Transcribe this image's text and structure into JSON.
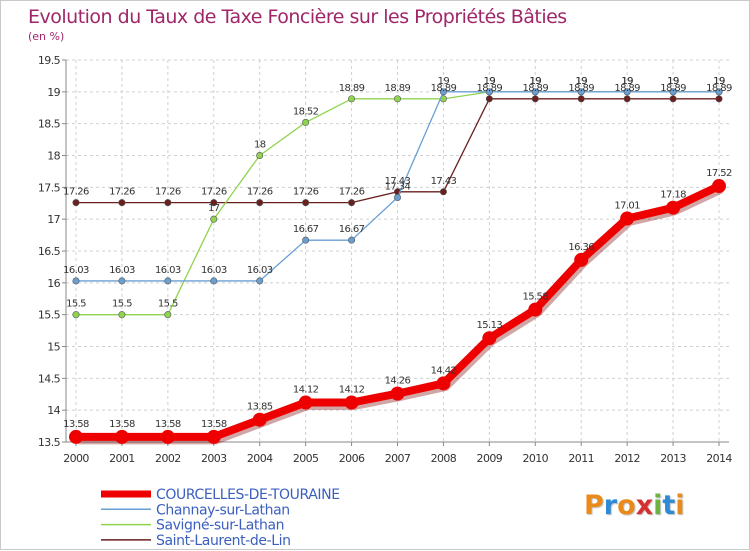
{
  "title": "Evolution du Taux de Taxe Foncière sur les Propriétés Bâties",
  "unit": "(en %)",
  "logo": {
    "text": "Proxiti",
    "colors": [
      "#e98a1a",
      "#2f8ad6",
      "#e98a1a",
      "#d62f2f",
      "#6db33f",
      "#2f8ad6",
      "#e98a1a"
    ]
  },
  "chart_data": {
    "type": "line",
    "title": "Evolution du Taux de Taxe Foncière sur les Propriétés Bâties",
    "ylabel": "(en %)",
    "xlabel": "",
    "ylim": [
      13.5,
      19.5
    ],
    "yticks": [
      "13.5",
      "14",
      "14.5",
      "15",
      "15.5",
      "16",
      "16.5",
      "17",
      "17.5",
      "18",
      "18.5",
      "19",
      "19.5"
    ],
    "x": [
      "2000",
      "2001",
      "2002",
      "2003",
      "2004",
      "2005",
      "2006",
      "2007",
      "2008",
      "2009",
      "2010",
      "2011",
      "2012",
      "2013",
      "2014"
    ],
    "grid": true,
    "legend_position": "bottom-left",
    "series": [
      {
        "name": "Saint-Laurent-de-Lin",
        "color": "#6b1f1f",
        "values": [
          17.26,
          17.26,
          17.26,
          17.26,
          17.26,
          17.26,
          17.26,
          17.43,
          17.43,
          18.89,
          18.89,
          18.89,
          18.89,
          18.89,
          18.89
        ],
        "labels": [
          "17.26",
          "17.26",
          "17.26",
          "17.26",
          "17.26",
          "17.26",
          "17.26",
          "17.43",
          "17.43",
          "18.89",
          "18.89",
          "18.89",
          "18.89",
          "18.89",
          "18.89"
        ]
      },
      {
        "name": "Savigné-sur-Lathan",
        "color": "#8fd44f",
        "values": [
          15.5,
          15.5,
          15.5,
          17,
          18,
          18.52,
          18.89,
          18.89,
          18.89,
          19,
          19,
          19,
          19,
          19,
          19
        ],
        "labels": [
          "15.5",
          "15.5",
          "15.5",
          "17",
          "18",
          "18.52",
          "18.89",
          "18.89",
          "18.89",
          "19",
          "19",
          "19",
          "19",
          "19",
          "19"
        ]
      },
      {
        "name": "Channay-sur-Lathan",
        "color": "#6a9fd4",
        "values": [
          16.03,
          16.03,
          16.03,
          16.03,
          16.03,
          16.67,
          16.67,
          17.34,
          19,
          19,
          19,
          19,
          19,
          19,
          19
        ],
        "labels": [
          "16.03",
          "16.03",
          "16.03",
          "16.03",
          "16.03",
          "16.67",
          "16.67",
          "17.34",
          "19",
          "19",
          "19",
          "19",
          "19",
          "19",
          "19"
        ]
      },
      {
        "name": "COURCELLES-DE-TOURAINE",
        "color": "#ee0000",
        "values": [
          13.58,
          13.58,
          13.58,
          13.58,
          13.85,
          14.12,
          14.12,
          14.26,
          14.42,
          15.13,
          15.58,
          16.36,
          17.01,
          17.18,
          17.52
        ],
        "labels": [
          "13.58",
          "13.58",
          "13.58",
          "13.58",
          "13.85",
          "14.12",
          "14.12",
          "14.26",
          "14.42",
          "15.13",
          "15.58",
          "16.36",
          "17.01",
          "17.18",
          "17.52"
        ]
      }
    ],
    "legend": [
      "COURCELLES-DE-TOURAINE",
      "Channay-sur-Lathan",
      "Savigné-sur-Lathan",
      "Saint-Laurent-de-Lin"
    ]
  }
}
